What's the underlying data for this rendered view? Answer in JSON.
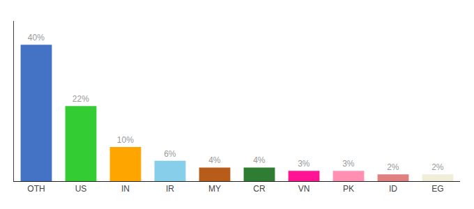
{
  "chart_data": {
    "type": "bar",
    "categories": [
      "OTH",
      "US",
      "IN",
      "IR",
      "MY",
      "CR",
      "VN",
      "PK",
      "ID",
      "EG"
    ],
    "values": [
      40,
      22,
      10,
      6,
      4,
      4,
      3,
      3,
      2,
      2
    ],
    "value_labels": [
      "40%",
      "22%",
      "10%",
      "6%",
      "4%",
      "4%",
      "3%",
      "3%",
      "2%",
      "2%"
    ],
    "colors": [
      "#4472C4",
      "#33CC33",
      "#FFA500",
      "#87CEEB",
      "#B85C1A",
      "#2E7D32",
      "#FF1493",
      "#FF90B3",
      "#E08080",
      "#F0EDD8"
    ],
    "ylim": [
      0,
      47
    ],
    "grid": false,
    "data_labels": true,
    "tick_labels": "x"
  }
}
